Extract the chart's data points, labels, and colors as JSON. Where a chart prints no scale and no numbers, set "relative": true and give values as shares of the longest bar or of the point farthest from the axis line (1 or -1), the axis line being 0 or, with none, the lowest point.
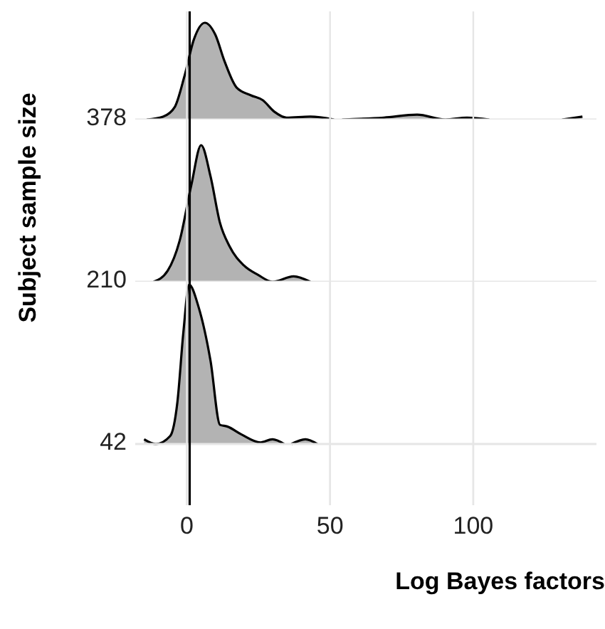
{
  "chart_data": [
    {
      "type": "area",
      "relative": true,
      "xlim": [
        -18,
        143
      ],
      "xticks": [
        0,
        50,
        100
      ],
      "tick_labels": false,
      "grid": "x",
      "ref_lines": [
        {
          "axis": "x",
          "value": 1,
          "color": "#000000"
        }
      ],
      "series": [
        {
          "name": "378",
          "color": "#b3b3b3",
          "x": [
            -14,
            -8.3,
            -4.2,
            -0.8,
            2.5,
            6.3,
            9.9,
            13.2,
            17.4,
            22.4,
            26.5,
            30.6,
            34.8,
            43.1,
            51.4,
            52.8,
            54.2,
            68.8,
            80.4,
            90.3,
            97.8,
            105.6,
            118,
            131,
            138.1
          ],
          "values": [
            0,
            0.03,
            0.13,
            0.45,
            0.83,
            1,
            0.88,
            0.6,
            0.33,
            0.25,
            0.2,
            0.08,
            0.02,
            0.03,
            0,
            null,
            0,
            0.02,
            0.05,
            0,
            0.02,
            0,
            null,
            0,
            0.03
          ]
        }
      ]
    },
    {
      "type": "area",
      "relative": true,
      "ylabel": "Subject sample size",
      "xlim": [
        -18,
        143
      ],
      "xticks": [
        0,
        50,
        100
      ],
      "tick_labels": false,
      "grid": "x",
      "ref_lines": [
        {
          "axis": "x",
          "value": 1,
          "color": "#000000"
        }
      ],
      "series": [
        {
          "name": "210",
          "color": "#b3b3b3",
          "x": [
            -11.6,
            -6.7,
            -2.5,
            1.6,
            5.0,
            8.3,
            11.6,
            14.9,
            19.9,
            24.9,
            29.9,
            37.3,
            43.1
          ],
          "values": [
            0,
            0.08,
            0.3,
            0.71,
            1,
            0.77,
            0.43,
            0.26,
            0.12,
            0.05,
            0,
            0.04,
            0
          ]
        }
      ]
    },
    {
      "type": "area",
      "relative": true,
      "xlabel": "Log Bayes factors",
      "xlim": [
        -18,
        143
      ],
      "xticks": [
        0,
        50,
        100
      ],
      "tick_labels": "x",
      "grid": "x",
      "ref_lines": [
        {
          "axis": "x",
          "value": 1,
          "color": "#000000"
        }
      ],
      "series": [
        {
          "name": "42",
          "color": "#b3b3b3",
          "x": [
            -14.9,
            -10.8,
            -5.8,
            -3.3,
            -1.2,
            0.8,
            4.1,
            8.3,
            11.6,
            14.1,
            19.1,
            25.7,
            29.9,
            34.0,
            35.2,
            36.5,
            41.4,
            45.6
          ],
          "values": [
            0.03,
            0,
            0.05,
            0.26,
            0.7,
            1,
            0.86,
            0.52,
            0.12,
            0.11,
            0.06,
            0.01,
            0.03,
            0,
            null,
            0,
            0.03,
            0
          ]
        }
      ]
    }
  ]
}
